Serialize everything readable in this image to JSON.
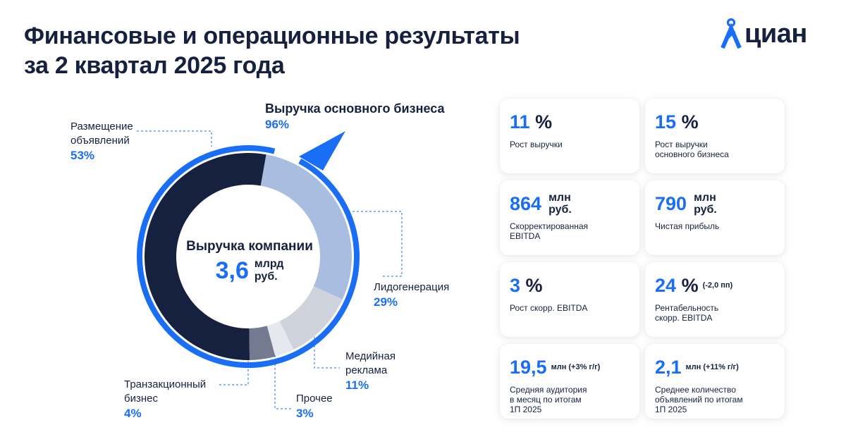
{
  "title": {
    "line1": "Финансовые и операционные результаты",
    "line2": "за 2 квартал 2025 года"
  },
  "logo": {
    "text": "циан",
    "icon": "cian-pin-logo-icon"
  },
  "colors": {
    "accent": "#1a6ef5",
    "dark": "#16213f",
    "ring_outer": "#1a6ef5",
    "lead": "#a9bde0",
    "media": "#cfd3dc",
    "other": "#e5e8ee",
    "transact": "#747b90"
  },
  "chart_data": {
    "type": "pie",
    "style": "donut",
    "center": {
      "title": "Выручка компании",
      "value": "3,6",
      "unit_line1": "млрд",
      "unit_line2": "руб."
    },
    "core_business": {
      "label": "Выручка основного бизнеса",
      "value": 96,
      "value_text": "96%"
    },
    "segments": [
      {
        "label_lines": [
          "Размещение",
          "объявлений"
        ],
        "value": 53,
        "value_text": "53%",
        "color": "#16213f"
      },
      {
        "label_lines": [
          "Лидогенерация"
        ],
        "value": 29,
        "value_text": "29%",
        "color": "#a9bde0"
      },
      {
        "label_lines": [
          "Медийная",
          "реклама"
        ],
        "value": 11,
        "value_text": "11%",
        "color": "#cfd3dc"
      },
      {
        "label_lines": [
          "Прочее"
        ],
        "value": 3,
        "value_text": "3%",
        "color": "#e5e8ee"
      },
      {
        "label_lines": [
          "Транзакционный",
          "бизнес"
        ],
        "value": 4,
        "value_text": "4%",
        "color": "#747b90"
      }
    ]
  },
  "cards": [
    {
      "value": "11",
      "symbol": "%",
      "desc_lines": [
        "Рост выручки"
      ]
    },
    {
      "value": "15",
      "symbol": "%",
      "desc_lines": [
        "Рост выручки",
        "основного бизнеса"
      ]
    },
    {
      "value": "864",
      "unit_line1": "млн",
      "unit_line2": "руб.",
      "desc_lines": [
        "Скорректированная",
        "EBITDA"
      ]
    },
    {
      "value": "790",
      "unit_line1": "млн",
      "unit_line2": "руб.",
      "desc_lines": [
        "Чистая прибыль"
      ]
    },
    {
      "value": "3",
      "symbol": "%",
      "desc_lines": [
        "Рост скорр. EBITDA"
      ]
    },
    {
      "value": "24",
      "symbol": "%",
      "note": "(-2,0 пп)",
      "desc_lines": [
        "Рентабельность",
        "скорр. EBITDA"
      ]
    },
    {
      "value": "19,5",
      "note": "млн (+3% г/г)",
      "desc_lines": [
        "Средняя аудитория",
        "в месяц по итогам",
        "1П 2025"
      ]
    },
    {
      "value": "2,1",
      "note": "млн (+11% г/г)",
      "desc_lines": [
        "Среднее количество",
        "объявлений по итогам",
        "1П 2025"
      ]
    }
  ]
}
